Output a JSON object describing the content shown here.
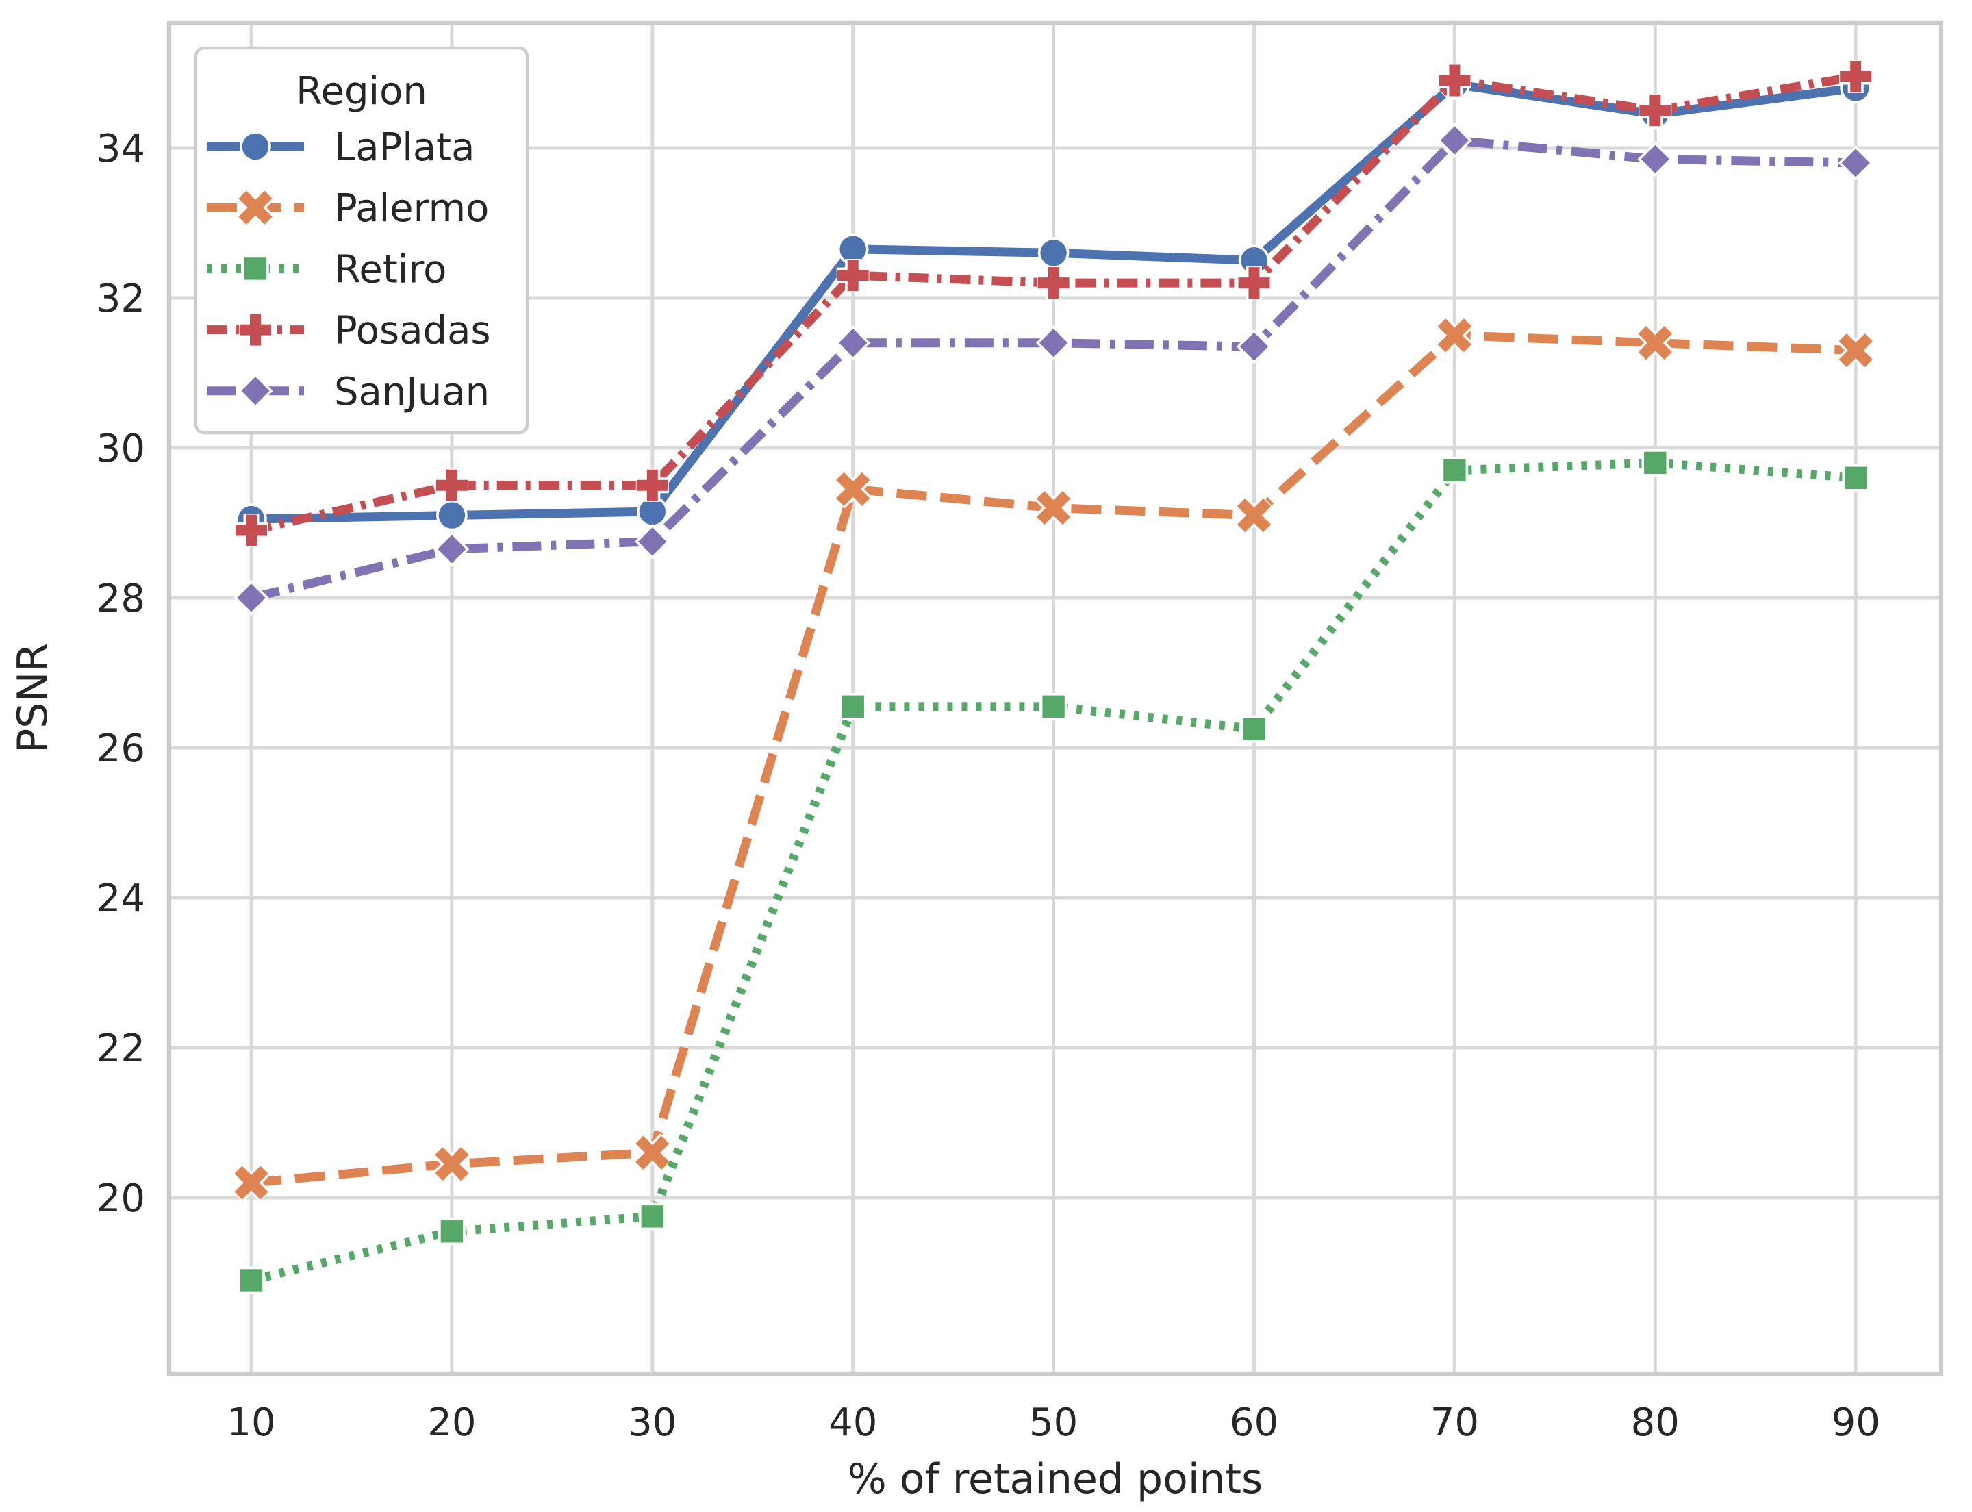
{
  "figure": {
    "background": "#ffffff",
    "grid_color": "#d9d9d9",
    "spine_color": "#cccccc",
    "text_color": "#262626"
  },
  "chart_data": {
    "type": "line",
    "title": "",
    "xlabel": "% of retained points",
    "ylabel": "PSNR",
    "legend_title": "Region",
    "legend_position": "upper-left",
    "grid": true,
    "x": [
      10,
      20,
      30,
      40,
      50,
      60,
      70,
      80,
      90
    ],
    "xticks": [
      10,
      20,
      30,
      40,
      50,
      60,
      70,
      80,
      90
    ],
    "yticks": [
      20,
      22,
      24,
      26,
      28,
      30,
      32,
      34
    ],
    "xlim": [
      5.9,
      94.3
    ],
    "ylim": [
      17.7,
      35.7
    ],
    "series": [
      {
        "name": "LaPlata",
        "color": "#4C72B0",
        "marker": "circle",
        "line_style": "solid",
        "values": [
          29.05,
          29.1,
          29.15,
          32.65,
          32.6,
          32.5,
          34.85,
          34.45,
          34.8
        ]
      },
      {
        "name": "Palermo",
        "color": "#DD8452",
        "marker": "x",
        "line_style": "dashed",
        "values": [
          20.2,
          20.45,
          20.6,
          29.45,
          29.2,
          29.1,
          31.5,
          31.4,
          31.3
        ]
      },
      {
        "name": "Retiro",
        "color": "#55A868",
        "marker": "square",
        "line_style": "dotted",
        "values": [
          18.9,
          19.55,
          19.75,
          26.55,
          26.55,
          26.25,
          29.7,
          29.8,
          29.6
        ]
      },
      {
        "name": "Posadas",
        "color": "#C44E52",
        "marker": "plus",
        "line_style": "dashdot",
        "values": [
          28.9,
          29.5,
          29.5,
          32.3,
          32.2,
          32.2,
          34.9,
          34.5,
          34.95
        ]
      },
      {
        "name": "SanJuan",
        "color": "#8172B3",
        "marker": "diamond",
        "line_style": "longdashdot",
        "values": [
          28.0,
          28.65,
          28.75,
          31.4,
          31.4,
          31.35,
          34.1,
          33.85,
          33.8
        ]
      }
    ]
  }
}
